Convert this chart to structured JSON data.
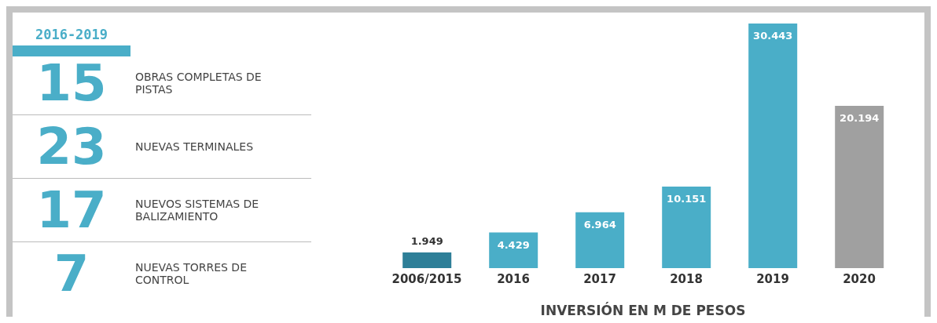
{
  "chart_data": [
    {
      "type": "other",
      "title": "2016-2019",
      "categories": [
        "OBRAS COMPLETAS DE PISTAS",
        "NUEVAS TERMINALES",
        "NUEVOS SISTEMAS DE BALIZAMIENTO",
        "NUEVAS TORRES DE CONTROL"
      ],
      "values": [
        15,
        23,
        17,
        7
      ],
      "data_labels": true,
      "color": "#4aaec8"
    },
    {
      "type": "bar",
      "xlabel": "INVERSIÓN EN M DE PESOS",
      "categories": [
        "2006/2015",
        "2016",
        "2017",
        "2018",
        "2019",
        "2020"
      ],
      "values": [
        1949,
        4429,
        6964,
        10151,
        30443,
        20194
      ],
      "colors": [
        "#2e7f98",
        "#4aaec8",
        "#4aaec8",
        "#4aaec8",
        "#4aaec8",
        "#a0a0a0"
      ],
      "value_labels": [
        "1.949",
        "4.429",
        "6.964",
        "10.151",
        "30.443",
        "20.194"
      ]
    }
  ]
}
